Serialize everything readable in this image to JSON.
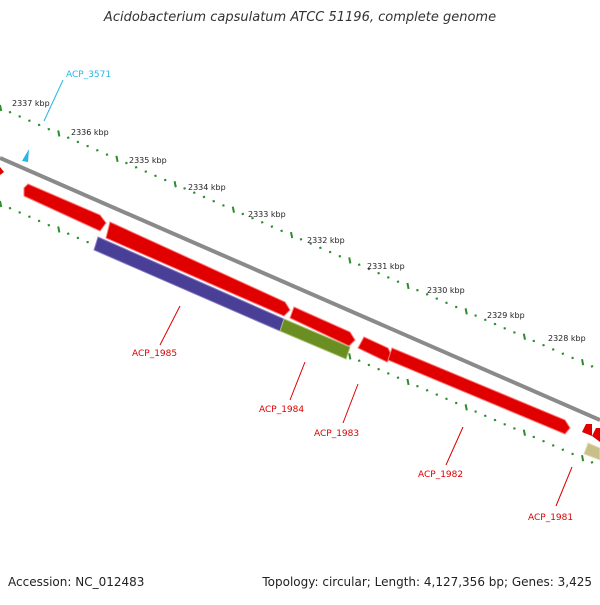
{
  "title": "Acidobacterium capsulatum ATCC 51196, complete genome",
  "footer": {
    "accession": "Accession: NC_012483",
    "summary": "Topology: circular; Length: 4,127,356 bp; Genes: 3,425"
  },
  "colors": {
    "backbone": "#8a8a8a",
    "tick": "#2e8b2e",
    "gene_forward": "#e00000",
    "gene_purple": "#4a3f96",
    "gene_olive": "#6b8e23",
    "gene_khaki": "#c8c089",
    "label_red": "#dd0000",
    "label_cyan": "#29b5e6"
  },
  "scale_labels": [
    "2337 kbp",
    "2336 kbp",
    "2335 kbp",
    "2334 kbp",
    "2333 kbp",
    "2332 kbp",
    "2331 kbp",
    "2330 kbp",
    "2329 kbp",
    "2328 kbp"
  ],
  "gene_labels": [
    {
      "name": "ACP_3571",
      "color": "cyan"
    },
    {
      "name": "ACP_1985",
      "color": "red"
    },
    {
      "name": "ACP_1984",
      "color": "red"
    },
    {
      "name": "ACP_1983",
      "color": "red"
    },
    {
      "name": "ACP_1982",
      "color": "red"
    },
    {
      "name": "ACP_1981",
      "color": "red"
    }
  ]
}
